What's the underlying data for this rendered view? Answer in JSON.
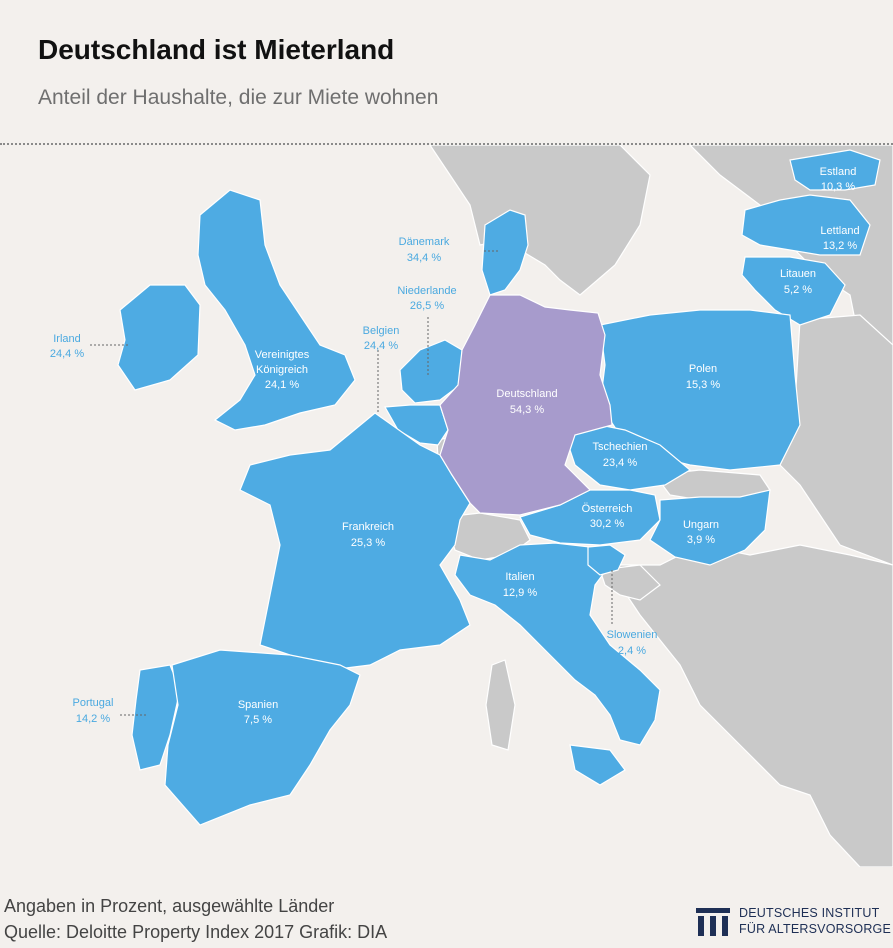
{
  "header": {
    "title": "Deutschland ist Mieterland",
    "subtitle": "Anteil der Haushalte, die zur Miete wohnen"
  },
  "colors": {
    "background": "#f3f0ed",
    "land_other": "#c9c9c9",
    "country_highlight": "#4eabe3",
    "germany": "#a79bcc",
    "border_white": "#ffffff",
    "outside_label": "#4aa9e0"
  },
  "countries": [
    {
      "id": "estland",
      "name": "Estland",
      "value": "10,3 %"
    },
    {
      "id": "lettland",
      "name": "Lettland",
      "value": "13,2 %"
    },
    {
      "id": "litauen",
      "name": "Litauen",
      "value": "5,2 %"
    },
    {
      "id": "daenemark",
      "name": "Dänemark",
      "value": "34,4 %"
    },
    {
      "id": "niederlande",
      "name": "Niederlande",
      "value": "26,5 %"
    },
    {
      "id": "belgien",
      "name": "Belgien",
      "value": "24,4 %"
    },
    {
      "id": "irland",
      "name": "Irland",
      "value": "24,4 %"
    },
    {
      "id": "uk",
      "name_line1": "Vereinigtes",
      "name_line2": "Königreich",
      "value": "24,1 %"
    },
    {
      "id": "deutschland",
      "name": "Deutschland",
      "value": "54,3 %"
    },
    {
      "id": "polen",
      "name": "Polen",
      "value": "15,3 %"
    },
    {
      "id": "tschechien",
      "name": "Tschechien",
      "value": "23,4 %"
    },
    {
      "id": "oesterreich",
      "name": "Österreich",
      "value": "30,2 %"
    },
    {
      "id": "ungarn",
      "name": "Ungarn",
      "value": "3,9 %"
    },
    {
      "id": "frankreich",
      "name": "Frankreich",
      "value": "25,3 %"
    },
    {
      "id": "italien",
      "name": "Italien",
      "value": "12,9 %"
    },
    {
      "id": "slowenien",
      "name": "Slowenien",
      "value": "2,4 %"
    },
    {
      "id": "portugal",
      "name": "Portugal",
      "value": "14,2 %"
    },
    {
      "id": "spanien",
      "name": "Spanien",
      "value": "7,5 %"
    }
  ],
  "footer": {
    "note": "Angaben in Prozent, ausgewählte Länder",
    "source": "Quelle: Deloitte Property Index 2017  Grafik: DIA",
    "brand_line1": "DEUTSCHES INSTITUT",
    "brand_line2": "FÜR ALTERSVORSORGE"
  }
}
